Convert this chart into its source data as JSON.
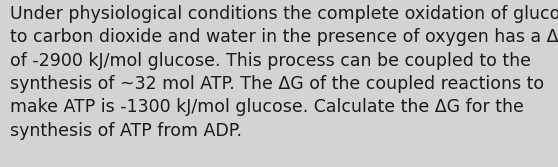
{
  "lines": [
    "Under physiological conditions the complete oxidation of glucose",
    "to carbon dioxide and water in the presence of oxygen has a ΔG",
    "of -2900 kJ/mol glucose. This process can be coupled to the",
    "synthesis of ~32 mol ATP. The ΔG of the coupled reactions to",
    "make ATP is -1300 kJ/mol glucose. Calculate the ΔG for the",
    "synthesis of ATP from ADP."
  ],
  "background_color": "#d3d3d3",
  "text_color": "#1a1a1a",
  "font_size": 12.5,
  "fig_width": 5.58,
  "fig_height": 1.67,
  "dpi": 100
}
